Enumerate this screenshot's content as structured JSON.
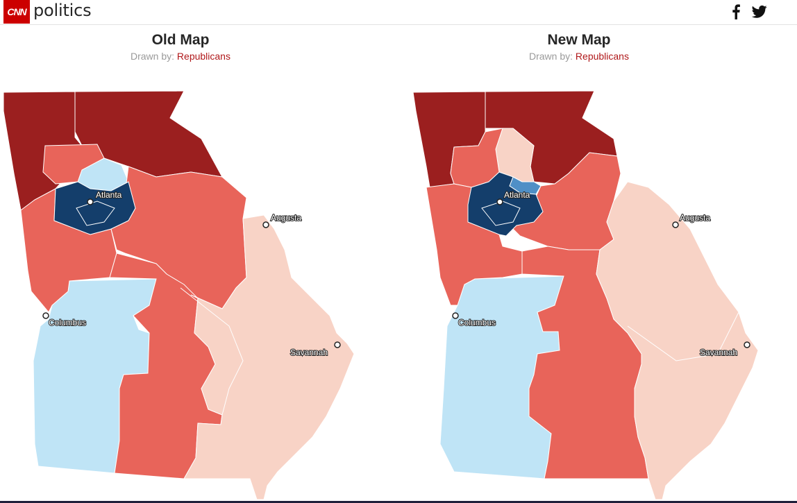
{
  "header": {
    "logo_text": "CNN",
    "section": "politics",
    "share": [
      "facebook-icon",
      "twitter-icon"
    ]
  },
  "colors": {
    "brand": "#cc0000",
    "strong_r": "#9b1f1f",
    "lean_r": "#e8645a",
    "weak_r": "#f8d3c6",
    "weak_d": "#bfe4f6",
    "lean_d": "#4f8fc6",
    "strong_d": "#143e6b"
  },
  "maps": [
    {
      "title": "Old Map",
      "drawn_by_label": "Drawn by:",
      "drawn_by": "Republicans",
      "cities": [
        "Atlanta",
        "Augusta",
        "Columbus",
        "Savannah"
      ]
    },
    {
      "title": "New Map",
      "drawn_by_label": "Drawn by:",
      "drawn_by": "Republicans",
      "cities": [
        "Atlanta",
        "Augusta",
        "Columbus",
        "Savannah"
      ]
    }
  ]
}
